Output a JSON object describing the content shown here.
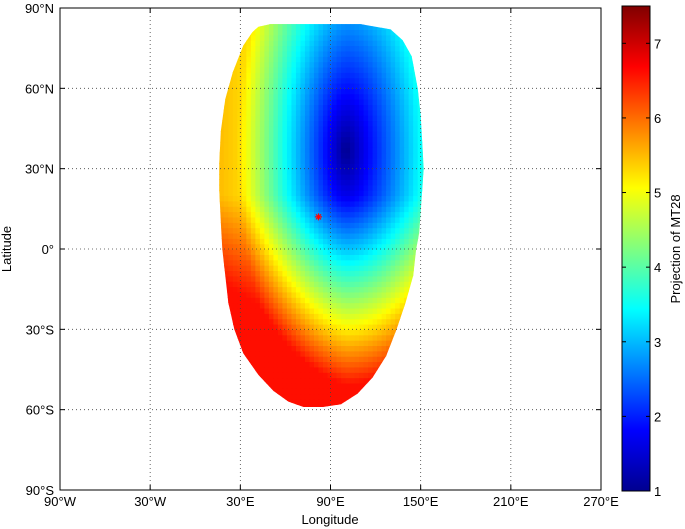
{
  "chart_data": {
    "type": "heatmap",
    "xlabel": "Longitude",
    "ylabel": "Latitude",
    "xlim": [
      -90,
      270
    ],
    "ylim": [
      -90,
      90
    ],
    "x_ticks": [
      -90,
      -30,
      30,
      90,
      150,
      210,
      270
    ],
    "x_tick_labels": [
      "90°W",
      "30°W",
      "30°E",
      "90°E",
      "150°E",
      "210°E",
      "270°E"
    ],
    "y_ticks": [
      90,
      60,
      30,
      0,
      -30,
      -60,
      -90
    ],
    "y_tick_labels": [
      "90°N",
      "60°N",
      "30°N",
      "0°",
      "30°S",
      "60°S",
      "90°S"
    ],
    "grid": "dotted",
    "colormap": "jet",
    "colorbar": {
      "label": "Projection of MT28",
      "range": [
        1,
        7.5
      ],
      "ticks": [
        1,
        2,
        3,
        4,
        5,
        6,
        7
      ],
      "tick_labels": [
        "1",
        "2",
        "3",
        "4",
        "5",
        "6",
        "7"
      ]
    },
    "field_extent": {
      "lon_range": [
        16,
        152
      ],
      "lat_range": [
        -58,
        83
      ]
    },
    "minimum": {
      "lon": 100,
      "lat": 37,
      "value": 1.1
    },
    "marker": {
      "lon": 82,
      "lat": 12,
      "symbol": "*",
      "color": "#ff0000"
    }
  }
}
